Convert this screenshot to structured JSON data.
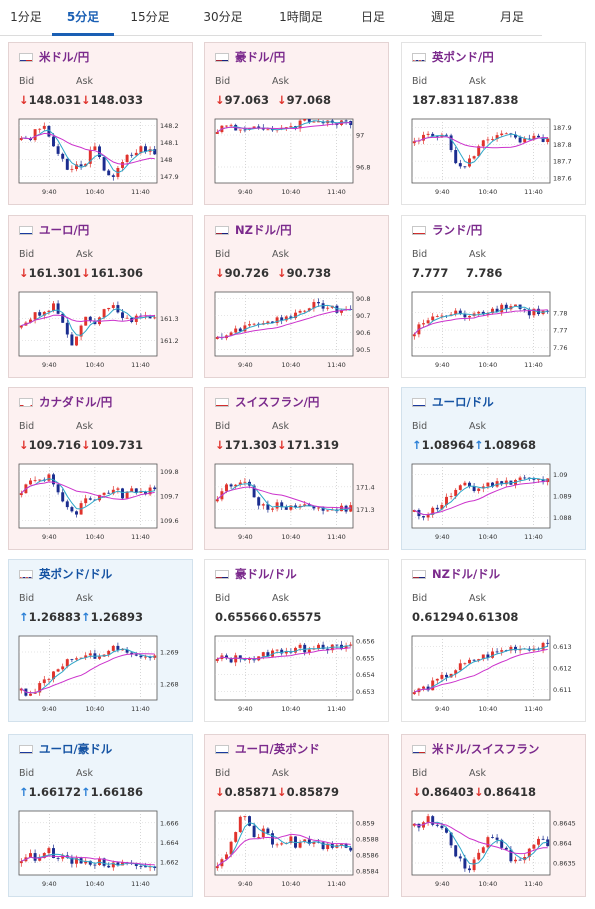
{
  "tabs": [
    {
      "label": "1分足",
      "active": false
    },
    {
      "label": "5分足",
      "active": true
    },
    {
      "label": "15分足",
      "active": false
    },
    {
      "label": "30分足",
      "active": false
    },
    {
      "label": "1時間足",
      "active": false
    },
    {
      "label": "日足",
      "active": false
    },
    {
      "label": "週足",
      "active": false
    },
    {
      "label": "月足",
      "active": false
    }
  ],
  "colors": {
    "up": "#e0332d",
    "down": "#1b2d8f",
    "ma_short": "#2fa8c9",
    "ma_long": "#cc33cc",
    "tab_active": "#1a5fb4",
    "pair_purple": "#7b2a8c",
    "pair_blue": "#1553a3"
  },
  "x_ticks": [
    "9:40",
    "10:40",
    "11:40"
  ],
  "cards": [
    {
      "name": "米ドル/円",
      "flag": "us",
      "theme": "pink",
      "bid_label": "Bid",
      "ask_label": "Ask",
      "bid": "148.031",
      "ask": "148.033",
      "direction": "down",
      "y_ticks": [
        "148.2",
        "148.1",
        "148",
        "147.9"
      ],
      "y_min": 147.86,
      "y_max": 148.24,
      "base": 148.12,
      "path": [
        0.02,
        -0.03,
        0.05,
        0.08,
        0.03,
        -0.05,
        -0.12,
        -0.2,
        -0.15,
        -0.17,
        -0.1,
        -0.05,
        -0.15,
        -0.2,
        -0.22,
        -0.15,
        -0.1,
        -0.08,
        -0.05,
        -0.06,
        -0.09
      ]
    },
    {
      "name": "豪ドル/円",
      "flag": "au",
      "theme": "pink",
      "bid_label": "Bid",
      "ask_label": "Ask",
      "bid": "97.063",
      "ask": "97.068",
      "direction": "down",
      "y_ticks": [
        "97",
        "96.8"
      ],
      "y_min": 96.7,
      "y_max": 97.1,
      "base": 97.04,
      "path": [
        0.0,
        0.01,
        0.02,
        -0.01,
        0.0,
        0.02,
        0.01,
        -0.02,
        -0.03,
        0.0,
        0.02,
        0.01,
        0.03,
        0.05,
        0.04,
        0.06,
        0.05,
        0.04,
        0.03,
        0.03,
        0.02
      ]
    },
    {
      "name": "英ポンド/円",
      "flag": "gb",
      "theme": "white",
      "bid_label": "Bid",
      "ask_label": "Ask",
      "bid": "187.831",
      "ask": "187.838",
      "direction": "none",
      "y_ticks": [
        "187.9",
        "187.8",
        "187.7",
        "187.6"
      ],
      "y_min": 187.57,
      "y_max": 187.95,
      "base": 187.8,
      "path": [
        0.0,
        0.03,
        0.06,
        0.05,
        0.08,
        0.02,
        -0.08,
        -0.15,
        -0.12,
        -0.05,
        0.0,
        0.03,
        0.05,
        0.08,
        0.05,
        0.03,
        0.01,
        0.02,
        0.03,
        0.03,
        0.03
      ]
    },
    {
      "name": "ユーロ/円",
      "flag": "eu",
      "theme": "pink",
      "bid_label": "Bid",
      "ask_label": "Ask",
      "bid": "161.301",
      "ask": "161.306",
      "direction": "down",
      "y_ticks": [
        "161.3",
        "161.2"
      ],
      "y_min": 161.13,
      "y_max": 161.42,
      "base": 161.26,
      "path": [
        0.0,
        0.04,
        0.07,
        0.05,
        0.09,
        0.1,
        0.03,
        -0.05,
        -0.08,
        0.0,
        0.05,
        0.02,
        0.06,
        0.08,
        0.09,
        0.05,
        0.03,
        0.04,
        0.05,
        0.05,
        0.04
      ]
    },
    {
      "name": "NZドル/円",
      "flag": "nz",
      "theme": "pink",
      "bid_label": "Bid",
      "ask_label": "Ask",
      "bid": "90.726",
      "ask": "90.738",
      "direction": "down",
      "y_ticks": [
        "90.8",
        "90.7",
        "90.6",
        "90.5"
      ],
      "y_min": 90.46,
      "y_max": 90.84,
      "base": 90.57,
      "path": [
        0.0,
        0.02,
        0.03,
        0.06,
        0.05,
        0.08,
        0.09,
        0.07,
        0.1,
        0.12,
        0.11,
        0.13,
        0.15,
        0.17,
        0.2,
        0.18,
        0.19,
        0.17,
        0.16,
        0.17,
        0.16
      ]
    },
    {
      "name": "ランド/円",
      "flag": "za",
      "theme": "white",
      "bid_label": "Bid",
      "ask_label": "Ask",
      "bid": "7.777",
      "ask": "7.786",
      "direction": "none",
      "y_ticks": [
        "7.78",
        "7.77",
        "7.76"
      ],
      "y_min": 7.755,
      "y_max": 7.792,
      "base": 7.768,
      "path": [
        0.0,
        0.005,
        0.008,
        0.01,
        0.009,
        0.011,
        0.012,
        0.01,
        0.011,
        0.013,
        0.012,
        0.014,
        0.013,
        0.016,
        0.015,
        0.017,
        0.014,
        0.012,
        0.013,
        0.012,
        0.012
      ]
    },
    {
      "name": "カナダドル/円",
      "flag": "ca",
      "theme": "pink",
      "bid_label": "Bid",
      "ask_label": "Ask",
      "bid": "109.716",
      "ask": "109.731",
      "direction": "down",
      "y_ticks": [
        "109.8",
        "109.7",
        "109.6"
      ],
      "y_min": 109.57,
      "y_max": 109.83,
      "base": 109.72,
      "path": [
        0.0,
        0.03,
        0.05,
        0.04,
        0.07,
        0.03,
        -0.03,
        -0.08,
        -0.1,
        -0.06,
        -0.03,
        -0.05,
        -0.02,
        0.0,
        0.01,
        -0.02,
        -0.01,
        0.0,
        0.0,
        0.0,
        0.0
      ]
    },
    {
      "name": "スイスフラン/円",
      "flag": "ch",
      "theme": "pink",
      "bid_label": "Bid",
      "ask_label": "Ask",
      "bid": "171.303",
      "ask": "171.319",
      "direction": "down",
      "y_ticks": [
        "171.4",
        "171.3"
      ],
      "y_min": 171.22,
      "y_max": 171.5,
      "base": 171.36,
      "path": [
        0.0,
        0.03,
        0.05,
        0.04,
        0.07,
        0.02,
        -0.02,
        -0.05,
        -0.06,
        -0.03,
        -0.04,
        -0.05,
        -0.03,
        -0.04,
        -0.05,
        -0.06,
        -0.05,
        -0.06,
        -0.05,
        -0.06,
        -0.05
      ]
    },
    {
      "name": "ユーロ/ドル",
      "flag": "eu",
      "theme": "blue",
      "bid_label": "Bid",
      "ask_label": "Ask",
      "bid": "1.08964",
      "ask": "1.08968",
      "direction": "up",
      "y_ticks": [
        "1.09",
        "1.089",
        "1.088"
      ],
      "y_min": 1.0875,
      "y_max": 1.0905,
      "base": 1.0882,
      "path": [
        0.0,
        -0.0001,
        0.0,
        0.0002,
        0.0004,
        0.0007,
        0.001,
        0.0012,
        0.0013,
        0.0011,
        0.0012,
        0.0014,
        0.0013,
        0.0015,
        0.0014,
        0.0016,
        0.0017,
        0.0016,
        0.0015,
        0.0015,
        0.0015
      ]
    },
    {
      "name": "英ポンド/ドル",
      "flag": "gb",
      "theme": "blue",
      "bid_label": "Bid",
      "ask_label": "Ask",
      "bid": "1.26883",
      "ask": "1.26893",
      "direction": "up",
      "y_ticks": [
        "1.269",
        "1.268"
      ],
      "y_min": 1.2675,
      "y_max": 1.2695,
      "base": 1.2678,
      "path": [
        0.0,
        -0.0001,
        0.0,
        0.0002,
        0.0004,
        0.0006,
        0.0008,
        0.0009,
        0.001,
        0.0009,
        0.0011,
        0.001,
        0.0011,
        0.0012,
        0.0013,
        0.0012,
        0.0011,
        0.001,
        0.0011,
        0.001,
        0.001
      ]
    },
    {
      "name": "豪ドル/ドル",
      "flag": "au",
      "theme": "white",
      "bid_label": "Bid",
      "ask_label": "Ask",
      "bid": "0.65566",
      "ask": "0.65575",
      "direction": "none",
      "y_ticks": [
        "0.656",
        "0.655",
        "0.654",
        "0.653"
      ],
      "y_min": 0.6525,
      "y_max": 0.6563,
      "base": 0.6549,
      "path": [
        0.0,
        0.0001,
        0.0,
        0.0001,
        0.0002,
        0.0001,
        0.0,
        0.0003,
        0.0004,
        0.0005,
        0.0006,
        0.0005,
        0.0007,
        0.0006,
        0.0008,
        0.0009,
        0.0008,
        0.0007,
        0.0007,
        0.0007,
        0.0007
      ]
    },
    {
      "name": "NZドル/ドル",
      "flag": "nz",
      "theme": "white",
      "bid_label": "Bid",
      "ask_label": "Ask",
      "bid": "0.61294",
      "ask": "0.61308",
      "direction": "none",
      "y_ticks": [
        "0.613",
        "0.612",
        "0.611"
      ],
      "y_min": 0.6105,
      "y_max": 0.6135,
      "base": 0.6109,
      "path": [
        0.0,
        0.0001,
        0.0002,
        0.0004,
        0.0006,
        0.0008,
        0.001,
        0.0012,
        0.0013,
        0.0015,
        0.0016,
        0.0017,
        0.0018,
        0.0019,
        0.002,
        0.0021,
        0.002,
        0.0021,
        0.002,
        0.0021,
        0.0021
      ]
    },
    {
      "name": "ユーロ/豪ドル",
      "flag": "eu",
      "theme": "blue",
      "bid_label": "Bid",
      "ask_label": "Ask",
      "bid": "1.66172",
      "ask": "1.66186",
      "direction": "up",
      "y_ticks": [
        "1.666",
        "1.664",
        "1.662"
      ],
      "y_min": 1.6607,
      "y_max": 1.6672,
      "base": 1.6623,
      "path": [
        0.0,
        0.0003,
        0.0002,
        0.0006,
        0.001,
        0.0004,
        0.0001,
        -0.0002,
        -0.0003,
        -0.0001,
        -0.0004,
        -0.0002,
        -0.0003,
        -0.0005,
        -0.0003,
        -0.0004,
        -0.0006,
        -0.0005,
        -0.0004,
        -0.0005,
        -0.0005
      ]
    },
    {
      "name": "ユーロ/英ポンド",
      "flag": "eu",
      "theme": "pink",
      "bid_label": "Bid",
      "ask_label": "Ask",
      "bid": "0.85871",
      "ask": "0.85879",
      "direction": "down",
      "y_ticks": [
        "0.859",
        "0.8588",
        "0.8586",
        "0.8584"
      ],
      "y_min": 0.85835,
      "y_max": 0.85915,
      "base": 0.8585,
      "path": [
        0.0,
        0.0001,
        0.0002,
        0.0005,
        0.0006,
        0.0004,
        0.0003,
        0.0004,
        0.0003,
        0.0002,
        0.0002,
        0.0003,
        0.0002,
        0.0003,
        0.0002,
        0.0003,
        0.0002,
        0.0002,
        0.0002,
        0.0002,
        0.0002
      ]
    },
    {
      "name": "米ドル/スイスフラン",
      "flag": "us",
      "theme": "pink",
      "bid_label": "Bid",
      "ask_label": "Ask",
      "bid": "0.86403",
      "ask": "0.86418",
      "direction": "down",
      "y_ticks": [
        "0.8645",
        "0.864",
        "0.8635"
      ],
      "y_min": 0.8632,
      "y_max": 0.8648,
      "base": 0.8644,
      "path": [
        0.0,
        0.0001,
        0.0002,
        0.0001,
        0.0,
        -0.0002,
        -0.0006,
        -0.0009,
        -0.0011,
        -0.0008,
        -0.0005,
        -0.0003,
        -0.0002,
        -0.0004,
        -0.0007,
        -0.0009,
        -0.0008,
        -0.0006,
        -0.0004,
        -0.0003,
        -0.0004
      ]
    }
  ]
}
